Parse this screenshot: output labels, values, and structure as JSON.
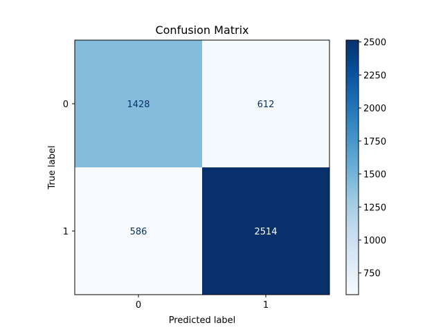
{
  "chart_data": {
    "type": "heatmap",
    "title": "Confusion Matrix",
    "xlabel": "Predicted label",
    "ylabel": "True label",
    "x_categories": [
      "0",
      "1"
    ],
    "y_categories": [
      "0",
      "1"
    ],
    "values": [
      [
        1428,
        612
      ],
      [
        586,
        2514
      ]
    ],
    "colormap": "Blues",
    "color_range": [
      586,
      2514
    ],
    "colorbar_ticks": [
      "750",
      "1000",
      "1250",
      "1500",
      "1750",
      "2000",
      "2250",
      "2500"
    ],
    "cell_text_colors": {
      "light": "#08306b",
      "dark": "#ffffff"
    }
  }
}
